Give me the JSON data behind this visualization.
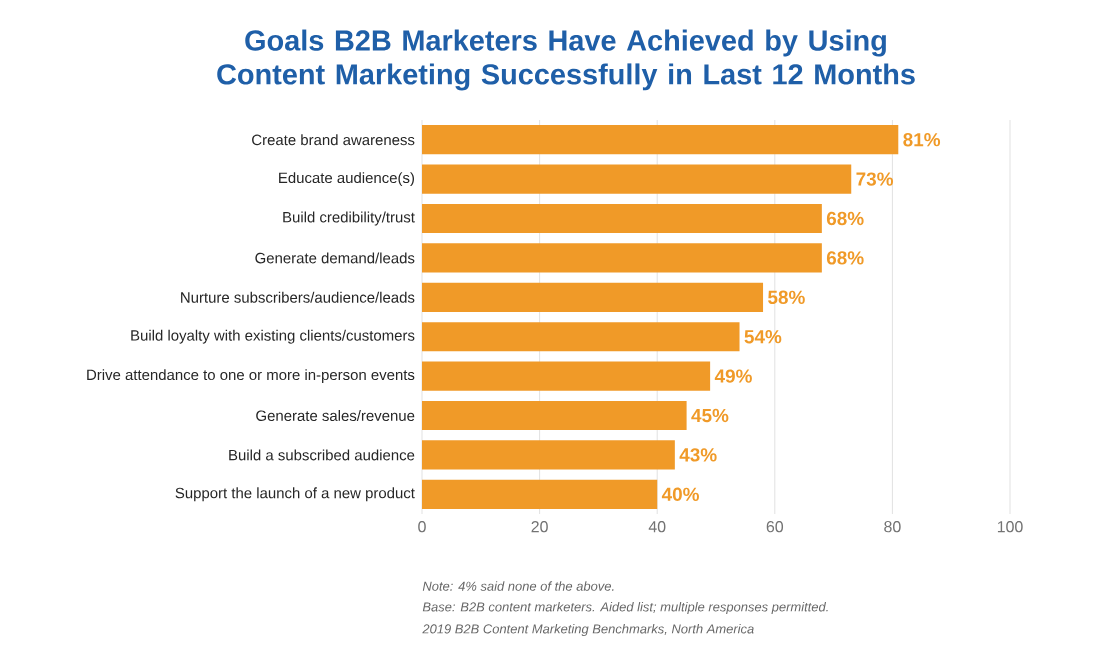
{
  "chart_data": {
    "type": "bar",
    "orientation": "horizontal",
    "title": "Goals B2B Marketers Have Achieved by Using Content Marketing Successfully in Last 12 Months",
    "categories": [
      "Create brand awareness",
      "Educate audience(s)",
      "Build credibility/trust",
      "Generate demand/leads",
      "Nurture subscribers/audience/leads",
      "Build loyalty with existing clients/customers",
      "Drive attendance to one or more in-person events",
      "Generate sales/revenue",
      "Build a subscribed audience",
      "Support the launch of a new product"
    ],
    "values": [
      81,
      73,
      68,
      68,
      58,
      54,
      49,
      45,
      43,
      40
    ],
    "value_labels": [
      "81%",
      "73%",
      "68%",
      "68%",
      "58%",
      "54%",
      "49%",
      "45%",
      "43%",
      "40%"
    ],
    "color": "#f09a28",
    "xlim": [
      0,
      100
    ],
    "xticks": [
      0,
      20,
      40,
      60,
      80,
      100
    ],
    "grid": "x",
    "annotations": [
      "Note: 4% said none of the above.",
      "Base: B2B content marketers. Aided list; multiple responses permitted.",
      "2019 B2B Content Marketing Benchmarks, North America"
    ]
  }
}
